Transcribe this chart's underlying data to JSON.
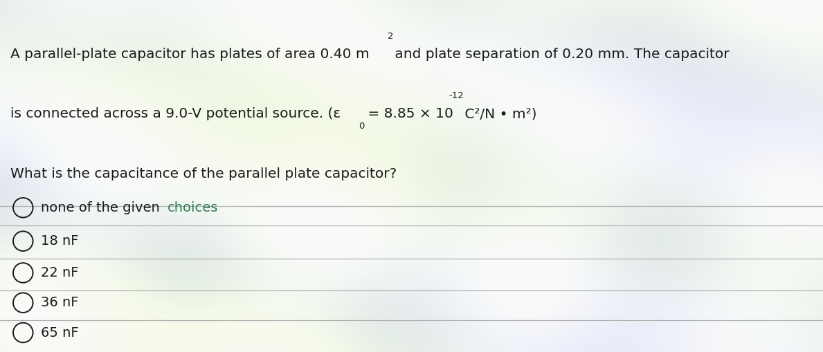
{
  "bg_color": "#c8c8c4",
  "panel_color": "#e8e8e4",
  "text_color": "#1a1a1a",
  "choice_color": "#1a1a1a",
  "highlight_color": "#2e7d52",
  "line_color": "#b0b0b0",
  "font_size_title": 14.5,
  "font_size_question": 14.5,
  "font_size_choices": 14,
  "line1_main": "A parallel-plate capacitor has plates of area 0.40 m",
  "line1_after_sup": " and plate separation of 0.20 mm. The capacitor",
  "line2_before_sub": "is connected across a 9.0-V potential source. (ε",
  "line2_sub": "0",
  "line2_after_sub": " = 8.85 × 10",
  "line2_sup": "-12",
  "line2_after_sup": " C²/N • m²)",
  "question": "What is the capacitance of the parallel plate capacitor?",
  "choices": [
    "none of the given choices",
    "18 nF",
    "22 nF",
    "36 nF",
    "65 nF"
  ],
  "choice_first_part": "none of the given ",
  "choice_first_colored": "choices"
}
